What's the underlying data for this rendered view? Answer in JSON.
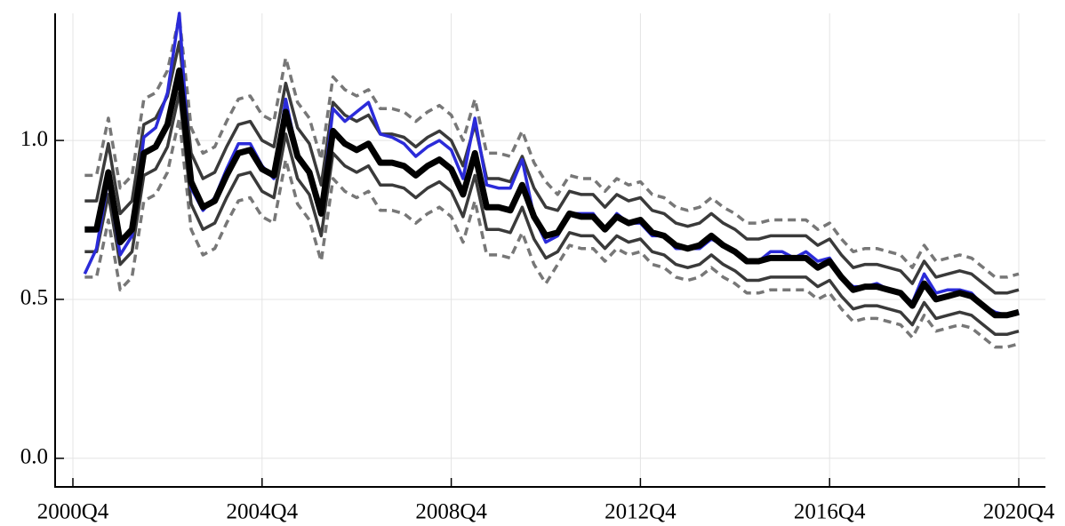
{
  "chart_data": {
    "type": "line",
    "categories": [
      "2000Q4",
      null,
      null,
      null,
      null,
      null,
      null,
      null,
      null,
      null,
      null,
      null,
      null,
      null,
      null,
      null,
      "2004Q4",
      null,
      null,
      null,
      null,
      null,
      null,
      null,
      null,
      null,
      null,
      null,
      null,
      null,
      null,
      null,
      "2008Q4",
      null,
      null,
      null,
      null,
      null,
      null,
      null,
      null,
      null,
      null,
      null,
      null,
      null,
      null,
      null,
      "2012Q4",
      null,
      null,
      null,
      null,
      null,
      null,
      null,
      null,
      null,
      null,
      null,
      null,
      null,
      null,
      null,
      "2016Q4",
      null,
      null,
      null,
      null,
      null,
      null,
      null,
      null,
      null,
      null,
      null,
      null,
      null,
      null,
      null,
      "2020Q4"
    ],
    "ylim": [
      -0.09,
      1.4
    ],
    "yticks": [
      {
        "value": 0,
        "label": "0.0"
      },
      {
        "value": 0.5,
        "label": "0.5"
      },
      {
        "value": 1,
        "label": "1.0"
      }
    ],
    "grid": true,
    "series": [
      {
        "color": "#777777",
        "width": 3.5,
        "dash": true,
        "values": [
          null,
          0.89,
          0.89,
          1.07,
          0.85,
          0.89,
          1.13,
          1.15,
          1.22,
          1.39,
          1.04,
          0.96,
          0.98,
          1.06,
          1.13,
          1.14,
          1.08,
          1.06,
          1.26,
          1.12,
          1.07,
          0.94,
          1.2,
          1.16,
          1.14,
          1.16,
          1.1,
          1.1,
          1.09,
          1.06,
          1.09,
          1.11,
          1.08,
          1.0,
          1.13,
          0.96,
          0.96,
          0.95,
          1.03,
          0.93,
          0.87,
          0.83,
          0.89,
          0.88,
          0.88,
          0.84,
          0.88,
          0.86,
          0.87,
          0.83,
          0.82,
          0.79,
          0.78,
          0.79,
          0.82,
          0.79,
          0.77,
          0.74,
          0.74,
          0.75,
          0.75,
          0.75,
          0.75,
          0.72,
          0.74,
          0.69,
          0.65,
          0.66,
          0.66,
          0.65,
          0.64,
          0.6,
          0.67,
          0.62,
          0.63,
          0.64,
          0.63,
          0.6,
          0.57,
          0.57,
          0.58
        ]
      },
      {
        "color": "#777777",
        "width": 3.5,
        "dash": true,
        "values": [
          null,
          0.57,
          0.57,
          0.75,
          0.53,
          0.57,
          0.81,
          0.83,
          0.9,
          1.07,
          0.72,
          0.64,
          0.66,
          0.74,
          0.81,
          0.82,
          0.76,
          0.74,
          0.94,
          0.8,
          0.75,
          0.62,
          0.88,
          0.84,
          0.82,
          0.84,
          0.78,
          0.78,
          0.77,
          0.74,
          0.77,
          0.79,
          0.76,
          0.68,
          0.81,
          0.64,
          0.64,
          0.63,
          0.71,
          0.61,
          0.55,
          0.61,
          0.67,
          0.66,
          0.66,
          0.62,
          0.66,
          0.64,
          0.65,
          0.61,
          0.6,
          0.57,
          0.56,
          0.57,
          0.6,
          0.57,
          0.55,
          0.52,
          0.52,
          0.53,
          0.53,
          0.53,
          0.53,
          0.5,
          0.52,
          0.47,
          0.43,
          0.44,
          0.44,
          0.43,
          0.42,
          0.38,
          0.45,
          0.4,
          0.41,
          0.42,
          0.41,
          0.38,
          0.35,
          0.35,
          0.36
        ]
      },
      {
        "color": "#3a3a3a",
        "width": 3.5,
        "dash": false,
        "values": [
          null,
          0.81,
          0.81,
          0.99,
          0.77,
          0.81,
          1.05,
          1.07,
          1.14,
          1.31,
          0.96,
          0.88,
          0.9,
          0.98,
          1.05,
          1.06,
          1.0,
          0.98,
          1.18,
          1.04,
          0.99,
          0.86,
          1.12,
          1.08,
          1.06,
          1.08,
          1.02,
          1.02,
          1.01,
          0.98,
          1.01,
          1.03,
          1.0,
          0.92,
          1.05,
          0.88,
          0.88,
          0.87,
          0.95,
          0.85,
          0.79,
          0.78,
          0.84,
          0.83,
          0.83,
          0.79,
          0.83,
          0.81,
          0.82,
          0.78,
          0.77,
          0.74,
          0.73,
          0.74,
          0.77,
          0.74,
          0.72,
          0.69,
          0.69,
          0.7,
          0.7,
          0.7,
          0.7,
          0.67,
          0.69,
          0.64,
          0.6,
          0.61,
          0.61,
          0.6,
          0.59,
          0.55,
          0.62,
          0.57,
          0.58,
          0.59,
          0.58,
          0.55,
          0.52,
          0.52,
          0.53
        ]
      },
      {
        "color": "#3a3a3a",
        "width": 3.5,
        "dash": false,
        "values": [
          null,
          0.65,
          0.65,
          0.83,
          0.61,
          0.65,
          0.89,
          0.91,
          0.98,
          1.15,
          0.8,
          0.72,
          0.74,
          0.82,
          0.89,
          0.9,
          0.84,
          0.82,
          1.02,
          0.88,
          0.83,
          0.7,
          0.96,
          0.92,
          0.9,
          0.92,
          0.86,
          0.86,
          0.85,
          0.82,
          0.85,
          0.87,
          0.84,
          0.76,
          0.89,
          0.72,
          0.72,
          0.71,
          0.79,
          0.69,
          0.63,
          0.65,
          0.71,
          0.7,
          0.7,
          0.66,
          0.7,
          0.68,
          0.69,
          0.65,
          0.64,
          0.61,
          0.6,
          0.61,
          0.64,
          0.61,
          0.59,
          0.56,
          0.56,
          0.57,
          0.57,
          0.57,
          0.57,
          0.54,
          0.56,
          0.51,
          0.47,
          0.48,
          0.48,
          0.47,
          0.46,
          0.42,
          0.49,
          0.44,
          0.45,
          0.46,
          0.45,
          0.42,
          0.39,
          0.39,
          0.4
        ]
      },
      {
        "color": "#2b2bd9",
        "width": 3.5,
        "dash": false,
        "values": [
          null,
          0.58,
          0.66,
          0.88,
          0.64,
          0.7,
          1.01,
          1.04,
          1.15,
          1.4,
          0.85,
          0.78,
          0.82,
          0.91,
          0.99,
          0.99,
          0.92,
          0.88,
          1.13,
          0.95,
          0.9,
          0.78,
          1.1,
          1.06,
          1.09,
          1.12,
          1.02,
          1.01,
          0.99,
          0.95,
          0.98,
          1.0,
          0.97,
          0.88,
          1.07,
          0.86,
          0.85,
          0.85,
          0.94,
          0.76,
          0.68,
          0.7,
          0.77,
          0.77,
          0.77,
          0.72,
          0.77,
          0.74,
          0.74,
          0.7,
          0.7,
          0.66,
          0.66,
          0.66,
          0.69,
          0.67,
          0.65,
          0.62,
          0.62,
          0.65,
          0.65,
          0.63,
          0.65,
          0.62,
          0.63,
          0.57,
          0.54,
          0.54,
          0.55,
          0.53,
          0.52,
          0.49,
          0.58,
          0.52,
          0.53,
          0.53,
          0.52,
          0.48,
          0.46,
          0.45,
          0.46
        ]
      },
      {
        "color": "#000000",
        "width": 7,
        "dash": false,
        "values": [
          null,
          0.72,
          0.72,
          0.9,
          0.68,
          0.72,
          0.96,
          0.98,
          1.05,
          1.22,
          0.87,
          0.79,
          0.81,
          0.89,
          0.96,
          0.97,
          0.91,
          0.89,
          1.09,
          0.95,
          0.9,
          0.77,
          1.03,
          0.99,
          0.97,
          0.99,
          0.93,
          0.93,
          0.92,
          0.89,
          0.92,
          0.94,
          0.91,
          0.83,
          0.96,
          0.79,
          0.79,
          0.78,
          0.86,
          0.76,
          0.7,
          0.71,
          0.77,
          0.76,
          0.76,
          0.72,
          0.76,
          0.74,
          0.75,
          0.71,
          0.7,
          0.67,
          0.66,
          0.67,
          0.7,
          0.67,
          0.65,
          0.62,
          0.62,
          0.63,
          0.63,
          0.63,
          0.63,
          0.6,
          0.62,
          0.57,
          0.53,
          0.54,
          0.54,
          0.53,
          0.52,
          0.48,
          0.55,
          0.5,
          0.51,
          0.52,
          0.51,
          0.48,
          0.45,
          0.45,
          0.46
        ]
      }
    ]
  }
}
